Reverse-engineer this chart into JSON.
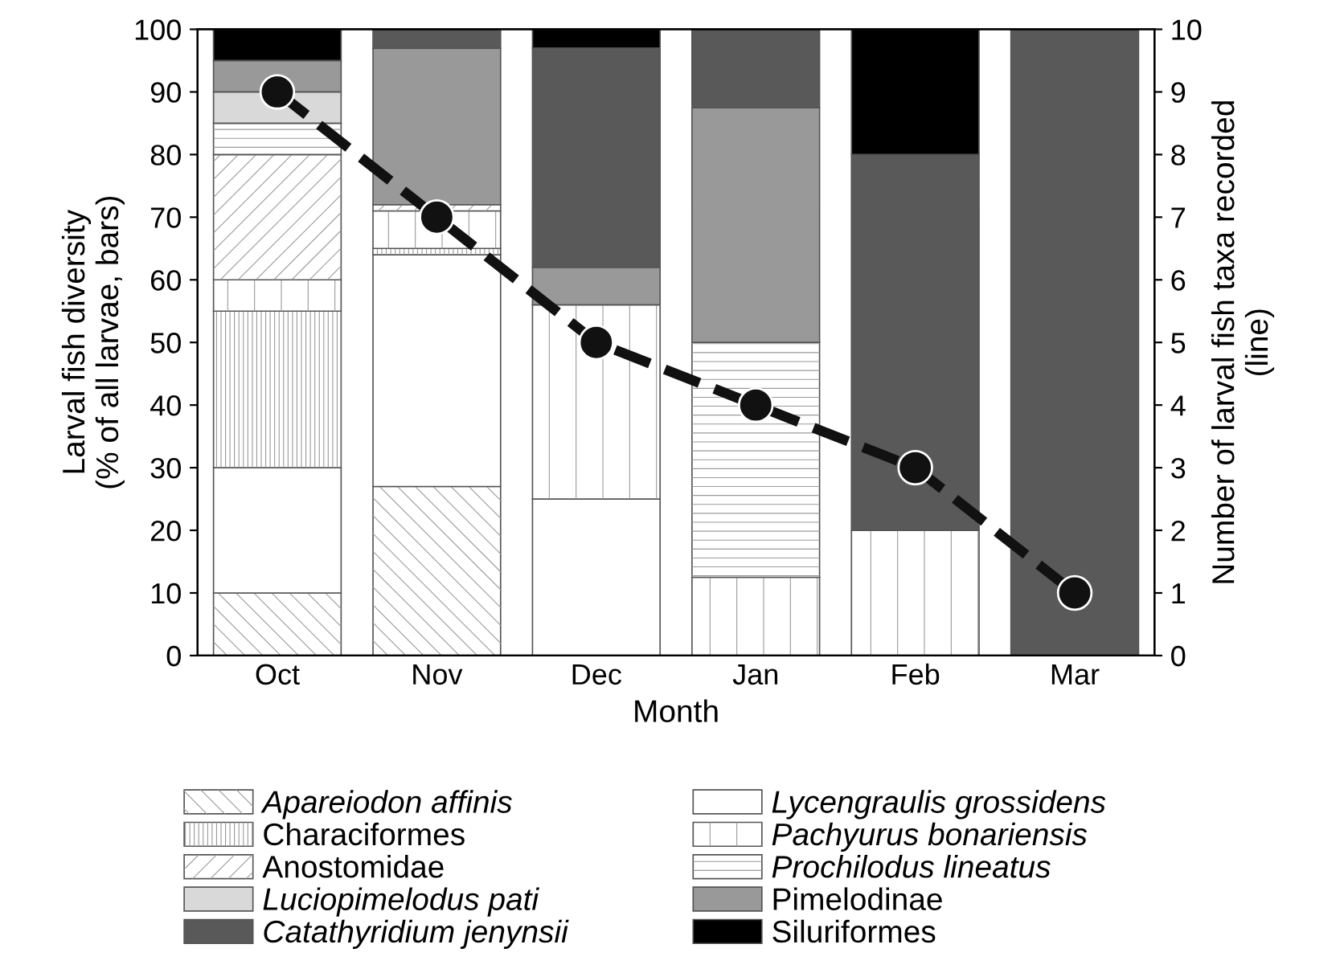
{
  "chart_data": {
    "type": "bar",
    "stacked": true,
    "xlabel": "Month",
    "ylabel": "Larval fish diversity\n(% of all larvae, bars)",
    "y2label": "Number of larval fish taxa recorded\n(line)",
    "categories": [
      "Oct",
      "Nov",
      "Dec",
      "Jan",
      "Feb",
      "Mar"
    ],
    "series": [
      {
        "name": "Apareiodon affinis",
        "color": "#ffffff",
        "values": [
          10,
          27,
          0,
          0,
          0,
          0
        ]
      },
      {
        "name": "Lycengraulis grossidens",
        "color": "#ffffff",
        "values": [
          20,
          37,
          25,
          0,
          0,
          0
        ]
      },
      {
        "name": "Characiformes",
        "color": "#ffffff",
        "values": [
          25,
          1,
          0,
          0,
          0,
          0
        ]
      },
      {
        "name": "Pachyurus bonariensis",
        "color": "#ffffff",
        "values": [
          5,
          6,
          31,
          12.5,
          20,
          0
        ]
      },
      {
        "name": "Anostomidae",
        "color": "#ffffff",
        "values": [
          20,
          1,
          0,
          0,
          0,
          0
        ]
      },
      {
        "name": "Prochilodus lineatus",
        "color": "#ffffff",
        "values": [
          5,
          0,
          0,
          37.5,
          0,
          0
        ]
      },
      {
        "name": "Luciopimelodus pati",
        "color": "#d9d9d9",
        "values": [
          5,
          0,
          0,
          0,
          0,
          0
        ]
      },
      {
        "name": "Pimelodinae",
        "color": "#999999",
        "values": [
          5,
          25,
          6,
          37.5,
          0,
          0
        ]
      },
      {
        "name": "Catathyridium jenynsii",
        "color": "#595959",
        "values": [
          0,
          3,
          35,
          12.5,
          60,
          100
        ]
      },
      {
        "name": "Siluriformes",
        "color": "#000000",
        "values": [
          5,
          0,
          3,
          0,
          20,
          0
        ]
      },
      {
        "type": "line",
        "axis": "y2",
        "color": "#111111",
        "line_style": "dashed",
        "marker": "circle",
        "values": [
          9,
          7,
          5,
          4,
          3,
          1
        ]
      }
    ],
    "ylim": [
      0,
      100
    ],
    "yticks": [
      0,
      10,
      20,
      30,
      40,
      50,
      60,
      70,
      80,
      90,
      100
    ],
    "y2lim": [
      0,
      10
    ],
    "y2ticks": [
      0,
      1,
      2,
      3,
      4,
      5,
      6,
      7,
      8,
      9,
      10
    ],
    "legend": "bottom",
    "grid": false
  }
}
